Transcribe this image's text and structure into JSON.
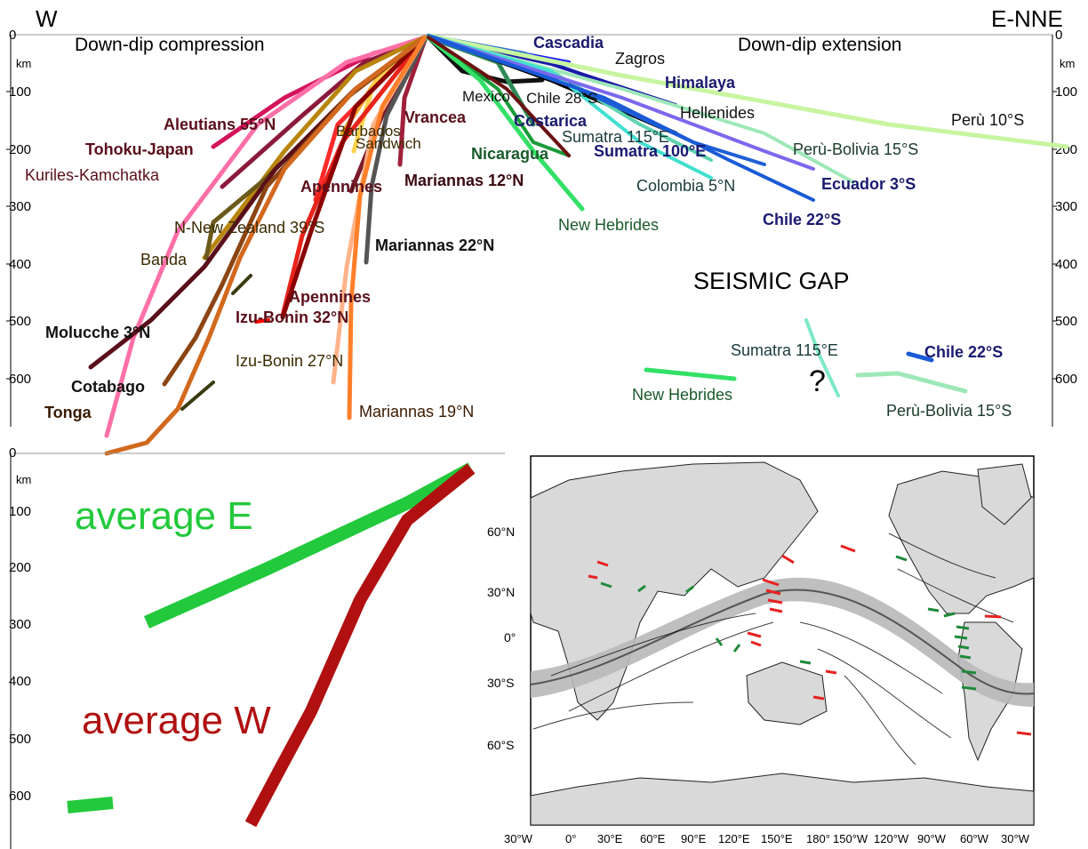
{
  "header": {
    "left": "W",
    "right": "E-NNE"
  },
  "top": {
    "compression_label": "Down-dip compression",
    "extension_label": "Down-dip extension",
    "gap_label": "SEISMIC GAP",
    "question": "?",
    "unit": "km",
    "depth_ticks": [
      "0",
      "100",
      "200",
      "300",
      "400",
      "500",
      "600"
    ],
    "slabs": [
      {
        "label": "Aleutians 55°N",
        "color": "#d4145a"
      },
      {
        "label": "Tohoku-Japan",
        "color": "#8b1a3a"
      },
      {
        "label": "Kuriles-Kamchatka",
        "color": "#ff6fa8"
      },
      {
        "label": "Vrancea",
        "color": "#a0203c"
      },
      {
        "label": "Barbados",
        "color": "#f5a623"
      },
      {
        "label": "Sandwich",
        "color": "#ffd24d"
      },
      {
        "label": "Apennines",
        "color": "#ff1a1a"
      },
      {
        "label": "Mariannas 12°N",
        "color": "#7a1a2a"
      },
      {
        "label": "N-New Zealand 39°S",
        "color": "#b8860b"
      },
      {
        "label": "Mariannas 22°N",
        "color": "#555555"
      },
      {
        "label": "Banda",
        "color": "#556b2f"
      },
      {
        "label": "Apennines",
        "color": "#ff0000"
      },
      {
        "label": "Izu-Bonin 32°N",
        "color": "#8b0000"
      },
      {
        "label": "Izu-Bonin 27°N",
        "color": "#ffb38a"
      },
      {
        "label": "Molucche 3°N",
        "color": "#5a0f1a"
      },
      {
        "label": "Cotabago",
        "color": "#8b4513"
      },
      {
        "label": "Tonga",
        "color": "#d2691e"
      },
      {
        "label": "Mariannas 19°N",
        "color": "#ff7f2a"
      },
      {
        "label": "Cascadia",
        "color": "#1a1aff"
      },
      {
        "label": "Zagros",
        "color": "#2a6cd6"
      },
      {
        "label": "Mexico",
        "color": "#111111"
      },
      {
        "label": "Chile 28°S",
        "color": "#66d9e8"
      },
      {
        "label": "Himalaya",
        "color": "#1a1aa8"
      },
      {
        "label": "Costarica",
        "color": "#2e8b57"
      },
      {
        "label": "Hellenides",
        "color": "#000000"
      },
      {
        "label": "Perù 10°S",
        "color": "#c8f5a0"
      },
      {
        "label": "Sumatra 115°E",
        "color": "#5fd3b0"
      },
      {
        "label": "Nicaragua",
        "color": "#1a9a3a"
      },
      {
        "label": "Sumatra 100°E",
        "color": "#1f5fd6"
      },
      {
        "label": "Perù-Bolivia 15°S",
        "color": "#9ee8b8"
      },
      {
        "label": "Colombia 5°N",
        "color": "#40e0d0"
      },
      {
        "label": "Ecuador 3°S",
        "color": "#7b68ee"
      },
      {
        "label": "Chile 22°S",
        "color": "#1a5ad6"
      },
      {
        "label": "New Hebrides",
        "color": "#33e066"
      }
    ],
    "deep_labels": {
      "sumatra": "Sumatra 115°E",
      "chile": "Chile 22°S",
      "new_hebrides": "New Hebrides",
      "peru_bolivia": "Perù-Bolivia 15°S"
    }
  },
  "bottom": {
    "unit": "km",
    "depth_ticks": [
      "0",
      "100",
      "200",
      "300",
      "400",
      "500",
      "600"
    ],
    "average_e": {
      "label": "average E",
      "color": "#22c93c"
    },
    "average_w": {
      "label": "average W",
      "color": "#b01010"
    }
  },
  "map": {
    "lat_ticks": [
      "60°N",
      "30°N",
      "0°",
      "30°S",
      "60°S"
    ],
    "lon_ticks": [
      "30°W",
      "0°",
      "30°E",
      "60°E",
      "90°E",
      "120°E",
      "150°E",
      "180°",
      "150°W",
      "120°W",
      "90°W",
      "60°W",
      "30°W"
    ],
    "land_color": "#d9d9d9",
    "band_color": "#b8b8b8",
    "compression_color": "#e82020",
    "extension_color": "#1f8a3a"
  }
}
